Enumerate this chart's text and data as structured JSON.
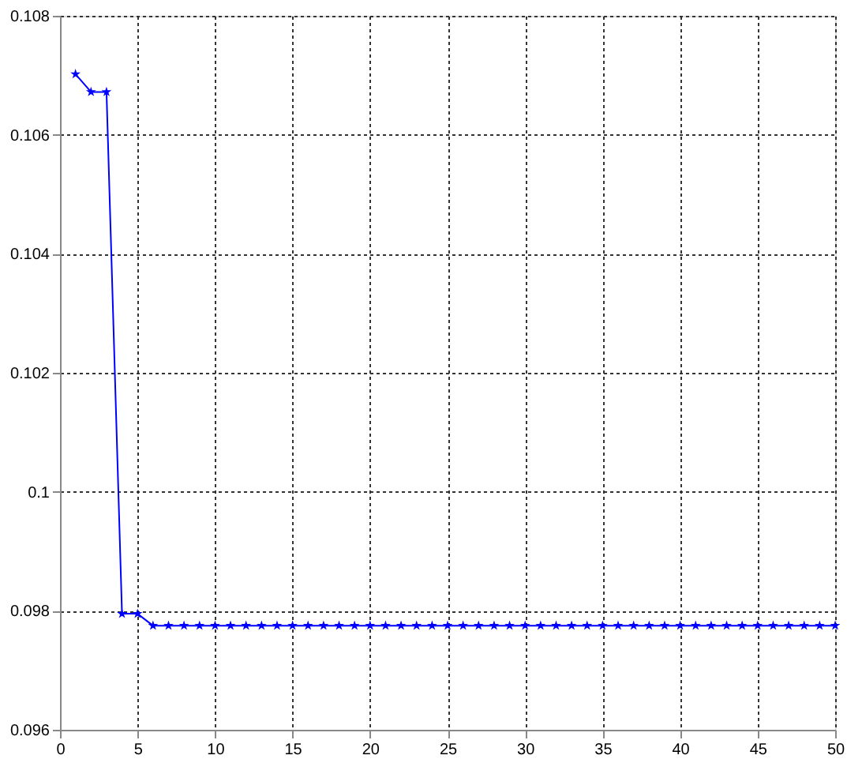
{
  "chart_data": {
    "type": "line",
    "x": [
      1,
      2,
      3,
      4,
      5,
      6,
      7,
      8,
      9,
      10,
      11,
      12,
      13,
      14,
      15,
      16,
      17,
      18,
      19,
      20,
      21,
      22,
      23,
      24,
      25,
      26,
      27,
      28,
      29,
      30,
      31,
      32,
      33,
      34,
      35,
      36,
      37,
      38,
      39,
      40,
      41,
      42,
      43,
      44,
      45,
      46,
      47,
      48,
      49,
      50
    ],
    "series": [
      {
        "color": "#0000ff",
        "values": [
          0.10702,
          0.10672,
          0.10672,
          0.09795,
          0.09795,
          0.09775,
          0.09775,
          0.09775,
          0.09775,
          0.09775,
          0.09775,
          0.09775,
          0.09775,
          0.09775,
          0.09775,
          0.09775,
          0.09775,
          0.09775,
          0.09775,
          0.09775,
          0.09775,
          0.09775,
          0.09775,
          0.09775,
          0.09775,
          0.09775,
          0.09775,
          0.09775,
          0.09775,
          0.09775,
          0.09775,
          0.09775,
          0.09775,
          0.09775,
          0.09775,
          0.09775,
          0.09775,
          0.09775,
          0.09775,
          0.09775,
          0.09775,
          0.09775,
          0.09775,
          0.09775,
          0.09775,
          0.09775,
          0.09775,
          0.09775,
          0.09775,
          0.09775
        ]
      }
    ],
    "xlim": [
      0,
      50
    ],
    "xticks": [
      0,
      5,
      10,
      15,
      20,
      25,
      30,
      35,
      40,
      45,
      50
    ],
    "ylim": [
      0.096,
      0.108
    ],
    "yticks": [
      0.096,
      0.098,
      0.1,
      0.102,
      0.104,
      0.106,
      0.108
    ],
    "grid": true,
    "marker": "star",
    "line_style": "solid",
    "legend": false
  }
}
